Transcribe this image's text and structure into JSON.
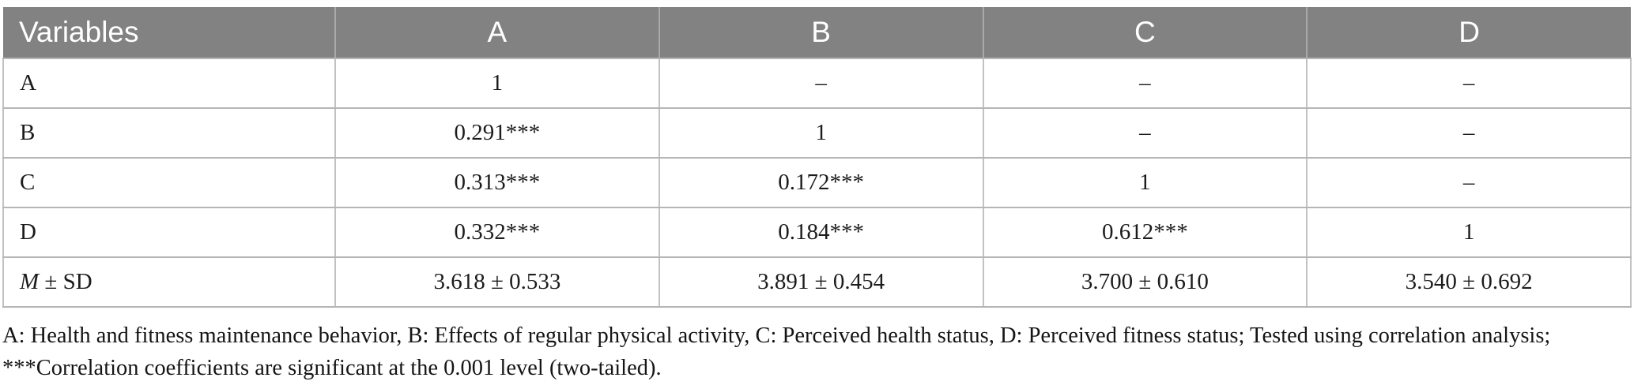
{
  "table": {
    "columns": [
      "Variables",
      "A",
      "B",
      "C",
      "D"
    ],
    "rows": [
      {
        "label": "A",
        "values": [
          "1",
          "–",
          "–",
          "–"
        ]
      },
      {
        "label": "B",
        "values": [
          "0.291***",
          "1",
          "–",
          "–"
        ]
      },
      {
        "label": "C",
        "values": [
          "0.313***",
          "0.172***",
          "1",
          "–"
        ]
      },
      {
        "label": "D",
        "values": [
          "0.332***",
          "0.184***",
          "0.612***",
          "1"
        ]
      },
      {
        "label_em": "M",
        "label_rest": " ± SD",
        "values": [
          "3.618 ± 0.533",
          "3.891 ± 0.454",
          "3.700 ± 0.610",
          "3.540 ± 0.692"
        ]
      }
    ],
    "footnote": "A: Health and fitness maintenance behavior, B: Effects of regular physical activity, C: Perceived health status, D: Perceived fitness status; Tested using correlation analysis; ***Correlation coefficients are significant at the 0.001 level (two-tailed)."
  },
  "colors": {
    "header_bg": "#828282",
    "header_text": "#ffffff",
    "header_divider": "#a9a9a9",
    "row_divider": "#b5b5b5",
    "column_divider": "#c2c2c2",
    "body_text": "#1c1c1c"
  }
}
